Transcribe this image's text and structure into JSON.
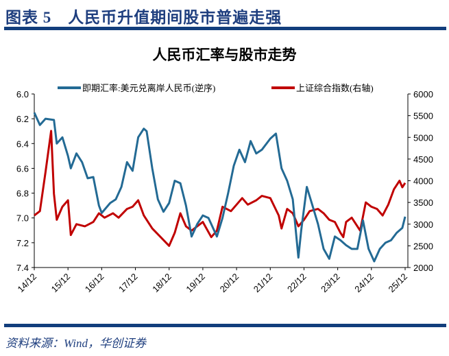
{
  "header": {
    "title": "图表 5　人民币升值期间股市普遍走强"
  },
  "footer": {
    "source": "资料来源：Wind，华创证券"
  },
  "colors": {
    "header": "#1f3f7f",
    "cny": "#236a94",
    "sh": "#c00000"
  },
  "chart_data": {
    "type": "line",
    "title": "人民币汇率与股市走势",
    "x_ticks": [
      "14/12",
      "15/12",
      "16/12",
      "17/12",
      "18/12",
      "19/12",
      "20/12",
      "21/12",
      "22/12",
      "23/12",
      "24/12",
      "25/12"
    ],
    "y_left": {
      "range": [
        6.0,
        7.4
      ],
      "inverted": true,
      "ticks": [
        "6.0",
        "6.2",
        "6.4",
        "6.6",
        "6.8",
        "7.0",
        "7.2",
        "7.4"
      ]
    },
    "y_right": {
      "range": [
        2000,
        6000
      ],
      "ticks": [
        "2000",
        "2500",
        "3000",
        "3500",
        "4000",
        "4500",
        "5000",
        "5500",
        "6000"
      ]
    },
    "legend_placement": "top",
    "series": [
      {
        "name": "即期汇率:美元兑离岸人民币(逆序)",
        "axis": "left",
        "data": [
          [
            "2014-12",
            6.15
          ],
          [
            "2015-02",
            6.25
          ],
          [
            "2015-04",
            6.2
          ],
          [
            "2015-07",
            6.21
          ],
          [
            "2015-08",
            6.4
          ],
          [
            "2015-10",
            6.35
          ],
          [
            "2015-12",
            6.5
          ],
          [
            "2016-01",
            6.6
          ],
          [
            "2016-03",
            6.48
          ],
          [
            "2016-05",
            6.55
          ],
          [
            "2016-07",
            6.68
          ],
          [
            "2016-09",
            6.67
          ],
          [
            "2016-11",
            6.9
          ],
          [
            "2016-12",
            6.96
          ],
          [
            "2017-03",
            6.88
          ],
          [
            "2017-05",
            6.85
          ],
          [
            "2017-07",
            6.75
          ],
          [
            "2017-09",
            6.55
          ],
          [
            "2017-11",
            6.62
          ],
          [
            "2018-01",
            6.35
          ],
          [
            "2018-03",
            6.28
          ],
          [
            "2018-04",
            6.3
          ],
          [
            "2018-06",
            6.6
          ],
          [
            "2018-08",
            6.85
          ],
          [
            "2018-10",
            6.95
          ],
          [
            "2018-12",
            6.88
          ],
          [
            "2019-02",
            6.7
          ],
          [
            "2019-04",
            6.72
          ],
          [
            "2019-06",
            6.9
          ],
          [
            "2019-08",
            7.15
          ],
          [
            "2019-10",
            7.05
          ],
          [
            "2019-12",
            6.98
          ],
          [
            "2020-02",
            7.0
          ],
          [
            "2020-05",
            7.15
          ],
          [
            "2020-07",
            7.0
          ],
          [
            "2020-09",
            6.8
          ],
          [
            "2020-11",
            6.58
          ],
          [
            "2021-01",
            6.45
          ],
          [
            "2021-03",
            6.55
          ],
          [
            "2021-05",
            6.38
          ],
          [
            "2021-07",
            6.48
          ],
          [
            "2021-09",
            6.45
          ],
          [
            "2021-12",
            6.36
          ],
          [
            "2022-02",
            6.32
          ],
          [
            "2022-04",
            6.6
          ],
          [
            "2022-06",
            6.7
          ],
          [
            "2022-08",
            6.85
          ],
          [
            "2022-10",
            7.32
          ],
          [
            "2022-11",
            7.1
          ],
          [
            "2023-01",
            6.75
          ],
          [
            "2023-03",
            6.9
          ],
          [
            "2023-05",
            7.05
          ],
          [
            "2023-07",
            7.25
          ],
          [
            "2023-09",
            7.33
          ],
          [
            "2023-11",
            7.15
          ],
          [
            "2024-01",
            7.18
          ],
          [
            "2024-03",
            7.22
          ],
          [
            "2024-05",
            7.25
          ],
          [
            "2024-07",
            7.25
          ],
          [
            "2024-09",
            7.02
          ],
          [
            "2024-11",
            7.25
          ],
          [
            "2025-01",
            7.35
          ],
          [
            "2025-03",
            7.25
          ],
          [
            "2025-05",
            7.2
          ],
          [
            "2025-07",
            7.18
          ],
          [
            "2025-09",
            7.12
          ],
          [
            "2025-11",
            7.08
          ],
          [
            "2025-12",
            6.99
          ]
        ]
      },
      {
        "name": "上证综合指数(右轴)",
        "axis": "right",
        "data": [
          [
            "2014-12",
            3200
          ],
          [
            "2015-02",
            3300
          ],
          [
            "2015-04",
            4200
          ],
          [
            "2015-06",
            5150
          ],
          [
            "2015-07",
            3700
          ],
          [
            "2015-08",
            3100
          ],
          [
            "2015-10",
            3400
          ],
          [
            "2015-12",
            3550
          ],
          [
            "2016-01",
            2750
          ],
          [
            "2016-03",
            3000
          ],
          [
            "2016-06",
            2950
          ],
          [
            "2016-09",
            3050
          ],
          [
            "2016-11",
            3250
          ],
          [
            "2017-01",
            3150
          ],
          [
            "2017-04",
            3250
          ],
          [
            "2017-06",
            3150
          ],
          [
            "2017-09",
            3350
          ],
          [
            "2017-11",
            3400
          ],
          [
            "2018-01",
            3550
          ],
          [
            "2018-03",
            3200
          ],
          [
            "2018-06",
            2900
          ],
          [
            "2018-09",
            2700
          ],
          [
            "2018-12",
            2500
          ],
          [
            "2019-02",
            2800
          ],
          [
            "2019-04",
            3250
          ],
          [
            "2019-06",
            2950
          ],
          [
            "2019-08",
            2850
          ],
          [
            "2019-10",
            2950
          ],
          [
            "2019-12",
            3050
          ],
          [
            "2020-03",
            2700
          ],
          [
            "2020-05",
            2850
          ],
          [
            "2020-07",
            3400
          ],
          [
            "2020-10",
            3300
          ],
          [
            "2020-12",
            3450
          ],
          [
            "2021-02",
            3600
          ],
          [
            "2021-04",
            3450
          ],
          [
            "2021-07",
            3550
          ],
          [
            "2021-09",
            3650
          ],
          [
            "2021-12",
            3600
          ],
          [
            "2022-03",
            3200
          ],
          [
            "2022-04",
            2900
          ],
          [
            "2022-06",
            3350
          ],
          [
            "2022-08",
            3250
          ],
          [
            "2022-10",
            2950
          ],
          [
            "2022-12",
            3100
          ],
          [
            "2023-02",
            3300
          ],
          [
            "2023-05",
            3350
          ],
          [
            "2023-07",
            3250
          ],
          [
            "2023-09",
            3100
          ],
          [
            "2023-11",
            3050
          ],
          [
            "2024-01",
            2800
          ],
          [
            "2024-02",
            2700
          ],
          [
            "2024-03",
            3050
          ],
          [
            "2024-05",
            3150
          ],
          [
            "2024-08",
            2850
          ],
          [
            "2024-10",
            3500
          ],
          [
            "2024-12",
            3400
          ],
          [
            "2025-02",
            3350
          ],
          [
            "2025-04",
            3200
          ],
          [
            "2025-06",
            3450
          ],
          [
            "2025-08",
            3800
          ],
          [
            "2025-10",
            4000
          ],
          [
            "2025-11",
            3850
          ],
          [
            "2025-12",
            3950
          ]
        ]
      }
    ]
  }
}
